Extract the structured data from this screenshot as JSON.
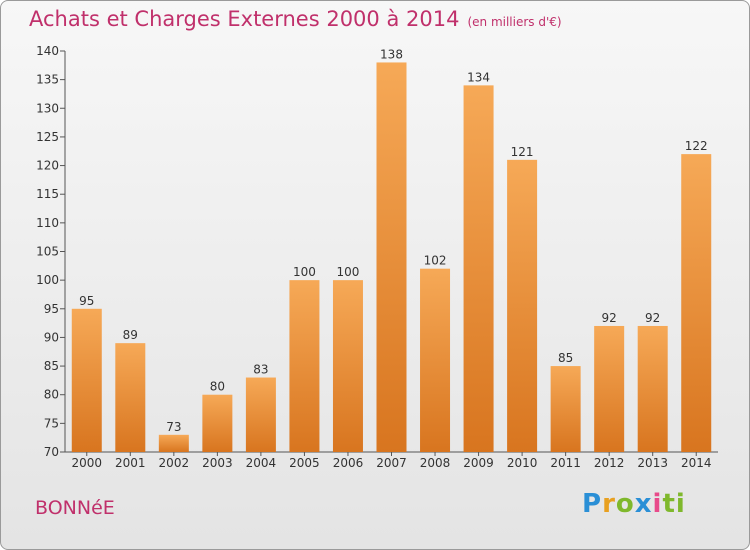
{
  "header": {
    "title": "Achats et Charges Externes 2000 à 2014",
    "subtitle": "(en milliers d'€)"
  },
  "footer": {
    "commune": "BONNéE",
    "logo_letters": [
      "P",
      "r",
      "o",
      "x",
      "i",
      "ti"
    ]
  },
  "colors": {
    "bar_light": "#f6a957",
    "bar_dark": "#d8751f",
    "title": "#c0306b"
  },
  "chart_data": {
    "type": "bar",
    "title": "Achats et Charges Externes 2000 à 2014",
    "subtitle": "(en milliers d'€)",
    "categories": [
      "2000",
      "2001",
      "2002",
      "2003",
      "2004",
      "2005",
      "2006",
      "2007",
      "2008",
      "2009",
      "2010",
      "2011",
      "2012",
      "2013",
      "2014"
    ],
    "values": [
      95,
      89,
      73,
      80,
      83,
      100,
      100,
      138,
      102,
      134,
      121,
      85,
      92,
      92,
      122
    ],
    "ylim": [
      70,
      140
    ],
    "yticks": [
      70,
      75,
      80,
      85,
      90,
      95,
      100,
      105,
      110,
      115,
      120,
      125,
      130,
      135,
      140
    ],
    "grid": false,
    "xlabel": "",
    "ylabel": ""
  }
}
